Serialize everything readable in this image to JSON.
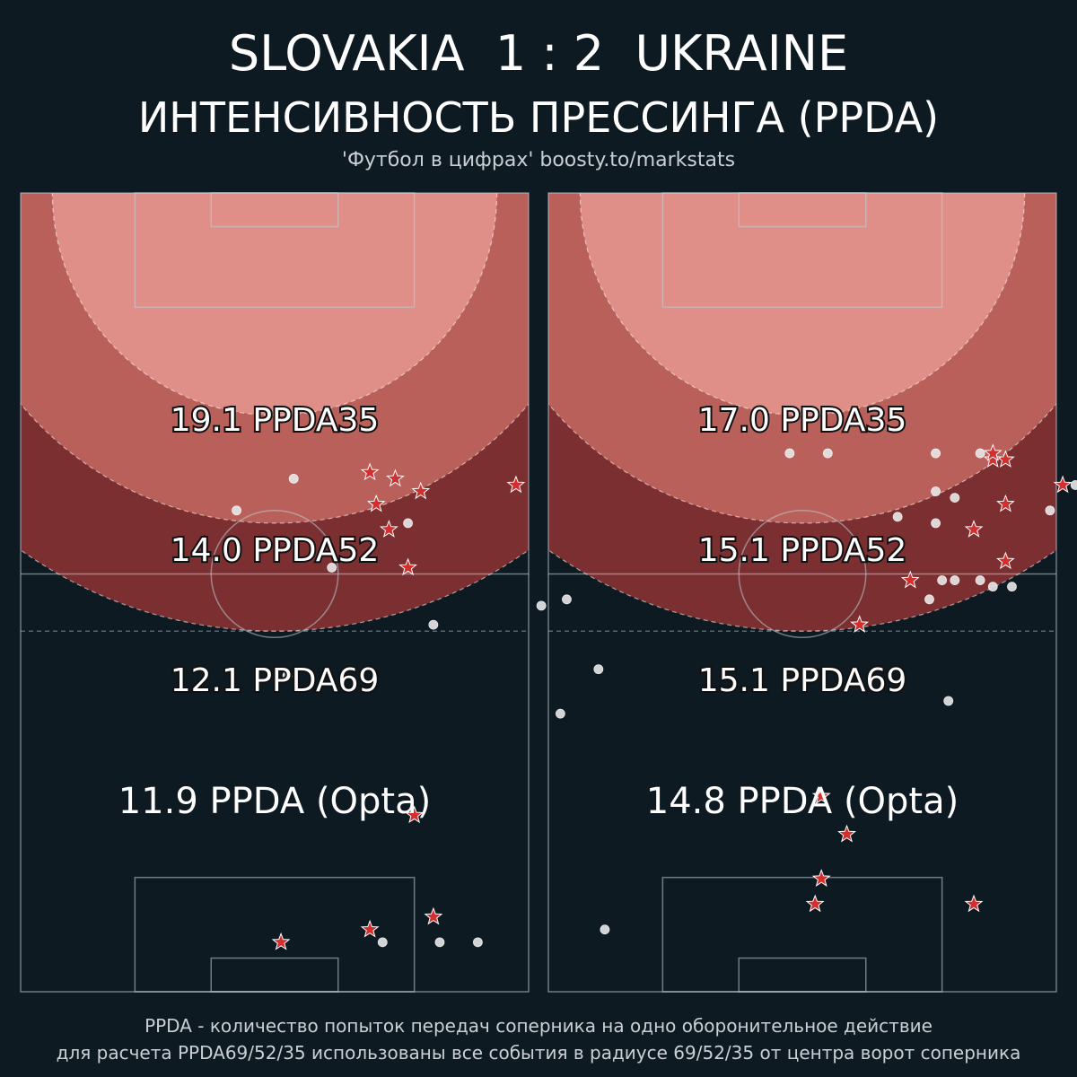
{
  "header": {
    "home_team": "SLOVAKIA",
    "score": "1 : 2",
    "away_team": "UKRAINE",
    "subtitle": "ИНТЕНСИВНОСТЬ ПРЕССИНГА (PPDA)",
    "credit": "'Футбол в цифрах' boosty.to/markstats"
  },
  "footer": {
    "line1": "PPDA - количество попыток передач соперника на одно оборонительное действие",
    "line2": "для расчета PPDA69/52/35 использованы все события в радиусе 69/52/35 от центра ворот соперника"
  },
  "colors": {
    "background": "#0e1a22",
    "zone35": "#df8f87",
    "zone52": "#b9605a",
    "zone69": "#7b2f31",
    "pass_dot": "#e8e8e8",
    "defensive_action_star": "#d32f2f"
  },
  "chart_data": [
    {
      "type": "scatter",
      "team": "SLOVAKIA",
      "zones": [
        {
          "radius": 35,
          "label": "19.1 PPDA35",
          "value": 19.1
        },
        {
          "radius": 52,
          "label": "14.0 PPDA52",
          "value": 14.0
        },
        {
          "radius": 69,
          "label": "12.1 PPDA69",
          "value": 12.1
        }
      ],
      "opta_label": "11.9 PPDA (Opta)",
      "opta_value": 11.9,
      "passes": [
        [
          38,
          85
        ],
        [
          45,
          91
        ],
        [
          56,
          86
        ],
        [
          55,
          82
        ],
        [
          72,
          95
        ],
        [
          70,
          99
        ],
        [
          66,
          94
        ],
        [
          66,
          90
        ],
        [
          4,
          92
        ],
        [
          2,
          72
        ],
        [
          2,
          66
        ],
        [
          2,
          57
        ],
        [
          52,
          65
        ],
        [
          68,
          61
        ],
        [
          44,
          42
        ],
        [
          61,
          49
        ],
        [
          70,
          34
        ],
        [
          75,
          43
        ]
      ],
      "defensive_actions": [
        [
          74,
          78
        ],
        [
          73,
          63
        ],
        [
          6,
          65
        ],
        [
          22,
          62
        ],
        [
          61,
          61
        ],
        [
          67,
          58
        ],
        [
          71,
          56
        ],
        [
          75,
          59
        ],
        [
          76,
          55
        ],
        [
          4,
          55
        ],
        [
          2,
          41
        ]
      ]
    },
    {
      "type": "scatter",
      "team": "UKRAINE",
      "zones": [
        {
          "radius": 35,
          "label": "17.0 PPDA35",
          "value": 17.0
        },
        {
          "radius": 52,
          "label": "15.1 PPDA52",
          "value": 15.1
        },
        {
          "radius": 69,
          "label": "15.1 PPDA69",
          "value": 15.1
        }
      ],
      "opta_label": "14.8 PPDA (Opta)",
      "opta_value": 14.8,
      "passes": [
        [
          20,
          91
        ],
        [
          55,
          92
        ],
        [
          74,
          83
        ],
        [
          70,
          79
        ],
        [
          58,
          73
        ],
        [
          58,
          70
        ],
        [
          59,
          68
        ],
        [
          59,
          64
        ],
        [
          59,
          62
        ],
        [
          56,
          60
        ],
        [
          68,
          61
        ],
        [
          73,
          61
        ],
        [
          79,
          68
        ],
        [
          79,
          61
        ],
        [
          69,
          55
        ],
        [
          40,
          63
        ],
        [
          79,
          44
        ],
        [
          79,
          38
        ],
        [
          72,
          64
        ]
      ],
      "defensive_actions": [
        [
          66,
          96
        ],
        [
          74,
          81
        ],
        [
          71,
          72
        ],
        [
          78,
          72
        ],
        [
          78,
          70
        ],
        [
          79,
          70
        ],
        [
          62,
          72
        ],
        [
          67,
          67
        ],
        [
          8,
          67
        ],
        [
          59,
          57
        ],
        [
          52,
          49
        ],
        [
          19,
          47
        ],
        [
          12,
          43
        ],
        [
          8,
          42
        ],
        [
          25,
          43
        ]
      ]
    }
  ]
}
